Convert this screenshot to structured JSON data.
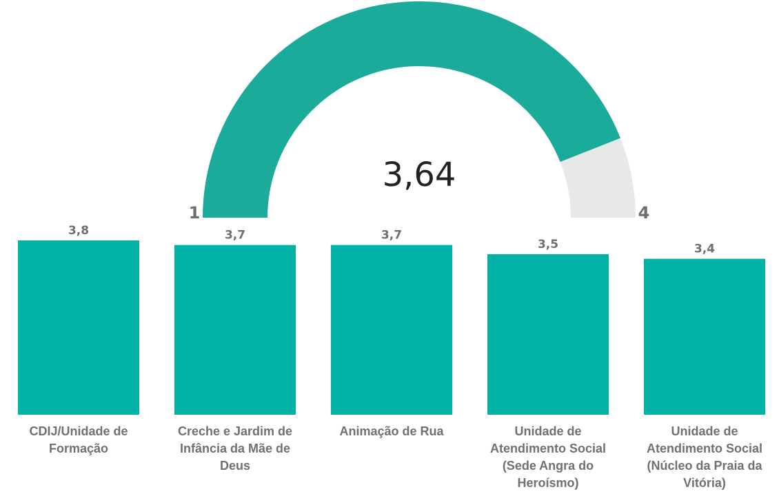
{
  "chart_data": [
    {
      "type": "gauge",
      "value": 3.64,
      "value_label": "3,64",
      "min": 1,
      "max": 4,
      "min_label": "1",
      "max_label": "4",
      "fill_color": "#1aab9b",
      "track_color": "#e8e8e8"
    },
    {
      "type": "bar",
      "categories": [
        "CDIJ/Unidade de Formação",
        "Creche e Jardim de Infância da Mãe de Deus",
        "Animação de Rua",
        "Unidade de Atendimento Social (Sede Angra do Heroísmo)",
        "Unidade de Atendimento Social (Núcleo da Praia da Vitória)"
      ],
      "values": [
        3.8,
        3.7,
        3.7,
        3.5,
        3.4
      ],
      "value_labels": [
        "3,8",
        "3,7",
        "3,7",
        "3,5",
        "3,4"
      ],
      "ylim": [
        0,
        3.8
      ],
      "bar_color": "#00b3a6",
      "grid": false,
      "legend": "none"
    }
  ]
}
